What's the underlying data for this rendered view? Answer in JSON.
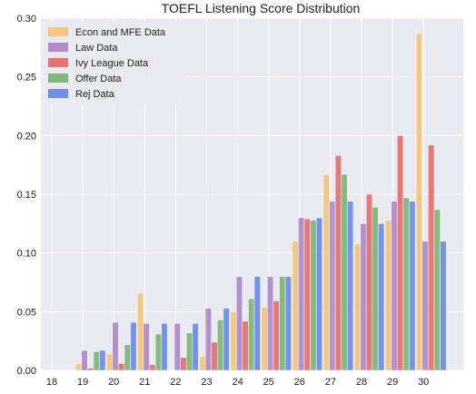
{
  "chart_data": {
    "type": "bar",
    "title": "TOEFL Listening Score Distribution",
    "xlabel": "",
    "ylabel": "",
    "categories": [
      "18",
      "19",
      "20",
      "21",
      "22",
      "23",
      "24",
      "25",
      "26",
      "27",
      "28",
      "29",
      "30"
    ],
    "ylim": [
      0,
      0.3
    ],
    "yticks": [
      "0.00",
      "0.05",
      "0.10",
      "0.15",
      "0.20",
      "0.25",
      "0.30"
    ],
    "grid": true,
    "legend_position": "top-left",
    "series": [
      {
        "name": "Econ and MFE Data",
        "color": "#f2c67d",
        "values": [
          0,
          0.006,
          0.014,
          0.066,
          0,
          0.012,
          0.05,
          0.054,
          0.11,
          0.167,
          0.108,
          0.128,
          0.287
        ]
      },
      {
        "name": "Law Data",
        "color": "#b08cc9",
        "values": [
          0,
          0.017,
          0.041,
          0.04,
          0.04,
          0.053,
          0.08,
          0.08,
          0.13,
          0.144,
          0.125,
          0.144,
          0.11
        ]
      },
      {
        "name": "Ivy League Data",
        "color": "#e57373",
        "values": [
          0,
          0.002,
          0.006,
          0.005,
          0.011,
          0.024,
          0.042,
          0.059,
          0.129,
          0.183,
          0.15,
          0.2,
          0.192
        ]
      },
      {
        "name": "Offer Data",
        "color": "#7fb87a",
        "values": [
          0,
          0.016,
          0.022,
          0.031,
          0.032,
          0.043,
          0.061,
          0.08,
          0.128,
          0.167,
          0.139,
          0.147,
          0.137
        ]
      },
      {
        "name": "Rej Data",
        "color": "#6f8fe8",
        "values": [
          0,
          0.017,
          0.041,
          0.04,
          0.04,
          0.053,
          0.08,
          0.08,
          0.13,
          0.144,
          0.125,
          0.144,
          0.11
        ]
      }
    ]
  }
}
